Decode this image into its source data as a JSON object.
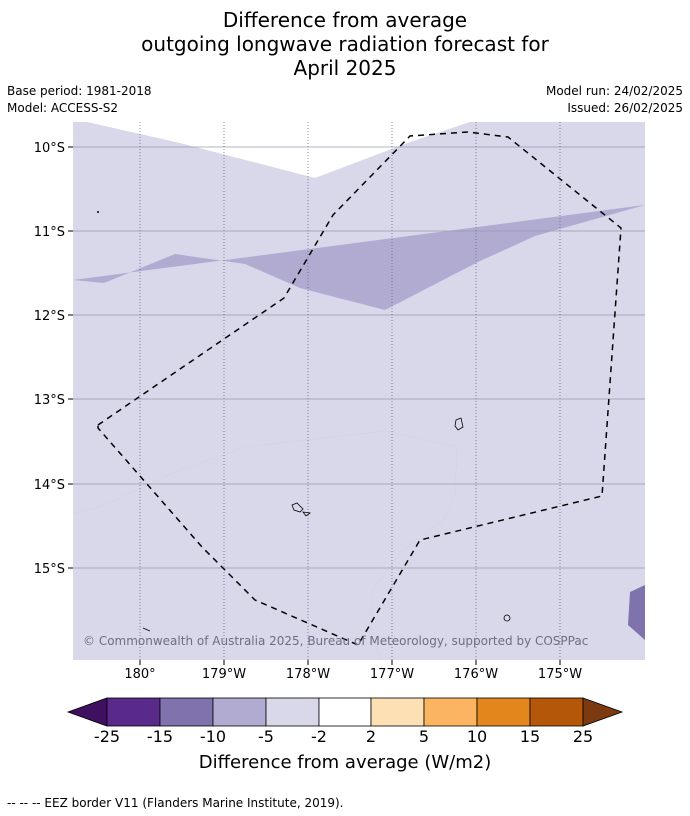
{
  "title": {
    "line1": "Difference from average",
    "line2": "outgoing longwave radiation forecast for",
    "line3": "April 2025"
  },
  "meta": {
    "base_period": "Base period: 1981-2018",
    "model": "Model: ACCESS-S2",
    "model_run": "Model run: 24/02/2025",
    "issued": "Issued: 26/02/2025"
  },
  "map": {
    "lat_labels": [
      "10°S",
      "11°S",
      "12°S",
      "13°S",
      "14°S",
      "15°S"
    ],
    "lon_labels": [
      "180°",
      "179°W",
      "178°W",
      "177°W",
      "176°W",
      "175°W"
    ],
    "copyright": "© Commonwealth of Australia 2025, Bureau of Meteorology, supported by COSPPac",
    "border": "dashed EEZ boundary"
  },
  "colorbar": {
    "title": "Difference from average (W/m2)",
    "tick_labels": [
      "-25",
      "-15",
      "-10",
      "-5",
      "-2",
      "2",
      "5",
      "10",
      "15",
      "25"
    ],
    "colors": {
      "under": "#3f1060",
      "b1": "#5a2a8a",
      "b2": "#8073ad",
      "b3": "#b1abd2",
      "b4": "#d8d8ea",
      "b5": "#ffffff",
      "b6": "#fde0b4",
      "b7": "#fbb562",
      "b8": "#e3861b",
      "b9": "#b45708",
      "over": "#7c3a10"
    }
  },
  "footer": "--  --  -- EEZ border V11 (Flanders Marine Institute, 2019)."
}
